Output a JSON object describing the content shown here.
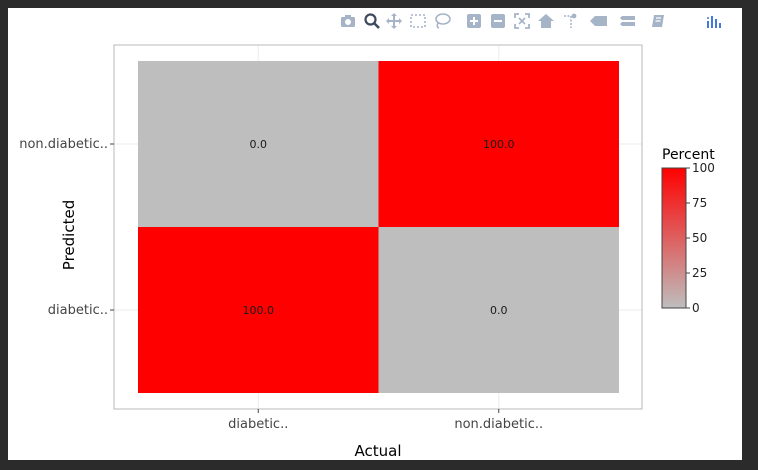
{
  "modebar": {
    "buttons": [
      {
        "name": "camera-icon",
        "title": "Download plot as a png"
      },
      {
        "name": "zoom-icon",
        "title": "Zoom"
      },
      {
        "name": "pan-icon",
        "title": "Pan"
      },
      {
        "name": "box-select-icon",
        "title": "Box Select"
      },
      {
        "name": "lasso-select-icon",
        "title": "Lasso Select"
      },
      {
        "name": "zoom-in-icon",
        "title": "Zoom in"
      },
      {
        "name": "zoom-out-icon",
        "title": "Zoom out"
      },
      {
        "name": "autoscale-icon",
        "title": "Autoscale"
      },
      {
        "name": "reset-axes-icon",
        "title": "Reset axes"
      },
      {
        "name": "spike-lines-icon",
        "title": "Toggle Spike Lines"
      },
      {
        "name": "hover-closest-icon",
        "title": "Show closest data on hover"
      },
      {
        "name": "hover-compare-icon",
        "title": "Compare data on hover"
      },
      {
        "name": "edit-chart-icon",
        "title": "Edit chart"
      },
      {
        "name": "plotly-logo-icon",
        "title": "Produced with Plotly"
      }
    ]
  },
  "chart_data": {
    "type": "heatmap",
    "xlabel": "Actual",
    "ylabel": "Predicted",
    "x_categories": [
      "diabetic..",
      "non.diabetic.."
    ],
    "y_categories": [
      "diabetic..",
      "non.diabetic.."
    ],
    "cells": [
      {
        "x": "diabetic..",
        "y": "non.diabetic..",
        "value": 0.0,
        "label": "0.0"
      },
      {
        "x": "non.diabetic..",
        "y": "non.diabetic..",
        "value": 100.0,
        "label": "100.0"
      },
      {
        "x": "diabetic..",
        "y": "diabetic..",
        "value": 100.0,
        "label": "100.0"
      },
      {
        "x": "non.diabetic..",
        "y": "diabetic..",
        "value": 0.0,
        "label": "0.0"
      }
    ],
    "colorscale": {
      "low": "#bebebe",
      "high": "#ff0000",
      "range": [
        0,
        100
      ]
    },
    "legend": {
      "title": "Percent",
      "ticks": [
        0,
        25,
        50,
        75,
        100
      ],
      "tick_labels": [
        "0",
        "25",
        "50",
        "75",
        "100"
      ],
      "placement": "right"
    },
    "grid": true
  }
}
